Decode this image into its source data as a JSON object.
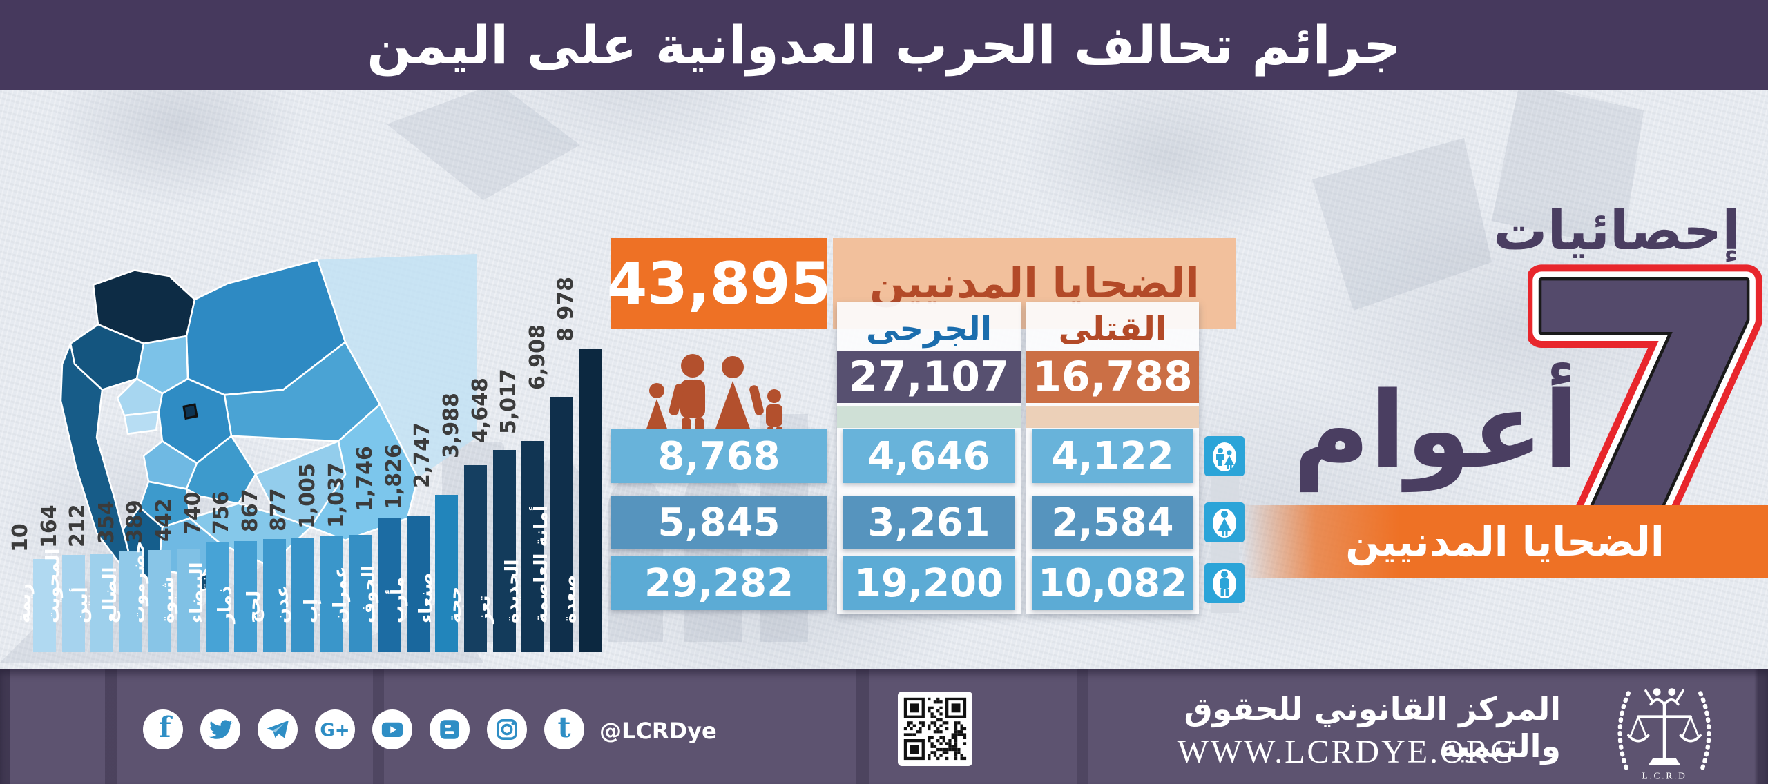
{
  "title": "جرائم تحالف الحرب العدوانية على اليمن",
  "side": {
    "statistics_label": "إحصائيات",
    "big_number": "7",
    "years_label": "أعوام",
    "ribbon_label": "الضحايا المدنيين"
  },
  "stats_panel": {
    "total_value": "43,895",
    "total_label": "الضحايا المدنيين",
    "wounded_label": "الجرحى",
    "wounded_total": "27,107",
    "killed_label": "القتلى",
    "killed_total": "16,788",
    "rows": [
      {
        "group": "children",
        "icon": "children-icon",
        "total": "8,768",
        "wounded": "4,646",
        "killed": "4,122"
      },
      {
        "group": "women",
        "icon": "woman-icon",
        "total": "5,845",
        "wounded": "3,261",
        "killed": "2,584"
      },
      {
        "group": "men",
        "icon": "man-icon",
        "total": "29,282",
        "wounded": "19,200",
        "killed": "10,082"
      }
    ]
  },
  "chart_data": [
    {
      "type": "bar",
      "orientation": "vertical",
      "title": "",
      "xlabel": "",
      "ylabel": "",
      "categories": [
        "ريمة",
        "المحويت",
        "أبين",
        "الضالع",
        "حضرموت",
        "شبوة",
        "البيضاء",
        "ذمار",
        "لحج",
        "عدن",
        "إب",
        "عمران",
        "الجوف",
        "مأرب",
        "صنعاء",
        "حجة",
        "تعز",
        "الحديدة",
        "أمانة العاصمة",
        "صعدة"
      ],
      "values": [
        10,
        164,
        212,
        354,
        389,
        442,
        740,
        756,
        867,
        877,
        1005,
        1037,
        1746,
        1826,
        2747,
        3988,
        4648,
        5017,
        6908,
        8978
      ],
      "value_labels": [
        "10",
        "164",
        "212",
        "354",
        "389",
        "442",
        "740",
        "756",
        "867",
        "877",
        "1,005",
        "1,037",
        "1,746",
        "1,826",
        "2,747",
        "3,988",
        "4,648",
        "5,017",
        "6,908",
        "8 978"
      ],
      "bar_colors": [
        "#b0d9f1",
        "#a6d3ee",
        "#9ed0ec",
        "#90c9e9",
        "#88c5e7",
        "#80c1e5",
        "#47a3d6",
        "#429ed2",
        "#3d99cd",
        "#3893c8",
        "#3a96ca",
        "#358fc4",
        "#1c6ca3",
        "#19679d",
        "#2285bb",
        "#153f61",
        "#133b5b",
        "#113553",
        "#0f2f4b",
        "#0c2840"
      ],
      "ylim": [
        0,
        9000
      ],
      "grid": false,
      "legend": "none",
      "note": "civilian victims by governorate, labels rotated vertical"
    },
    {
      "type": "table",
      "title": "الضحايا المدنيين",
      "columns": [
        "group",
        "total",
        "الجرحى",
        "القتلى"
      ],
      "rows": [
        [
          "children",
          8768,
          4646,
          4122
        ],
        [
          "women",
          5845,
          3261,
          2584
        ],
        [
          "men",
          29282,
          19200,
          10082
        ],
        [
          "total",
          43895,
          27107,
          16788
        ]
      ]
    }
  ],
  "footer": {
    "social": [
      "facebook",
      "twitter",
      "telegram",
      "google-plus",
      "youtube",
      "blogger",
      "instagram",
      "tumblr"
    ],
    "handle": "@LCRDye",
    "org_name": "المركز القانوني للحقوق والتنمية",
    "website": "WWW.LCRDYE.ORG",
    "logo_text": "L.C.R.D"
  },
  "colors": {
    "title_band": "#46395d",
    "accent_orange": "#ee7125",
    "peach": "#f2c09c",
    "brick_text": "#b34a28",
    "purple_value_box": "#575070",
    "orange_value_box": "#cb6f45",
    "blue_header_text": "#1b6dad",
    "row_blue_1": "#68b3da",
    "row_blue_2": "#5694be",
    "row_blue_3": "#5cabd5",
    "tint_wounded": "#cfe0d6",
    "tint_killed": "#ecd0b8",
    "group_icon_blue": "#2ba4d8",
    "family_icon": "#b3502d",
    "side_purple": "#4a3e61",
    "seven_red": "#e8262c",
    "footer_purple": "#5d5370",
    "social_glyph_blue": "#2e8ec5"
  }
}
